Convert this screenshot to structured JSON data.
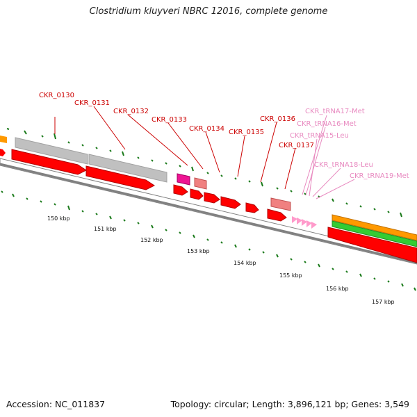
{
  "title": "Clostridium kluyveri NBRC 12016, complete genome",
  "footer": {
    "accession": "Accession: NC_011837",
    "summary": "Topology: circular; Length: 3,896,121 bp; Genes: 3,549"
  },
  "colors": {
    "cds": "#ff0000",
    "cds_dark": "#b00000",
    "pseudo": "#c0c0c0",
    "pink": "#f08080",
    "magenta": "#ee1493",
    "trna": "#ff9acb",
    "orange": "#ff9900",
    "green": "#33cc33",
    "tick": "#1a7a1a",
    "backbone": "#808080",
    "gene_label": "#cc0000",
    "trna_label": "#e88ac0"
  },
  "gene_labels": [
    {
      "text": "CKR_0130",
      "kind": "cds"
    },
    {
      "text": "CKR_0131",
      "kind": "cds"
    },
    {
      "text": "CKR_0132",
      "kind": "cds"
    },
    {
      "text": "CKR_0133",
      "kind": "cds"
    },
    {
      "text": "CKR_0134",
      "kind": "cds"
    },
    {
      "text": "CKR_0135",
      "kind": "cds"
    },
    {
      "text": "CKR_0136",
      "kind": "cds"
    },
    {
      "text": "CKR_0137",
      "kind": "cds"
    },
    {
      "text": "CKR_tRNA17-Met",
      "kind": "trna"
    },
    {
      "text": "CKR_tRNA16-Met",
      "kind": "trna"
    },
    {
      "text": "CKR_tRNA15-Leu",
      "kind": "trna"
    },
    {
      "text": "CKR_tRNA18-Leu",
      "kind": "trna"
    },
    {
      "text": "CKR_tRNA19-Met",
      "kind": "trna"
    }
  ],
  "kbp_labels": [
    "150 kbp",
    "151 kbp",
    "152 kbp",
    "153 kbp",
    "154 kbp",
    "155 kbp",
    "156 kbp",
    "157 kbp"
  ]
}
